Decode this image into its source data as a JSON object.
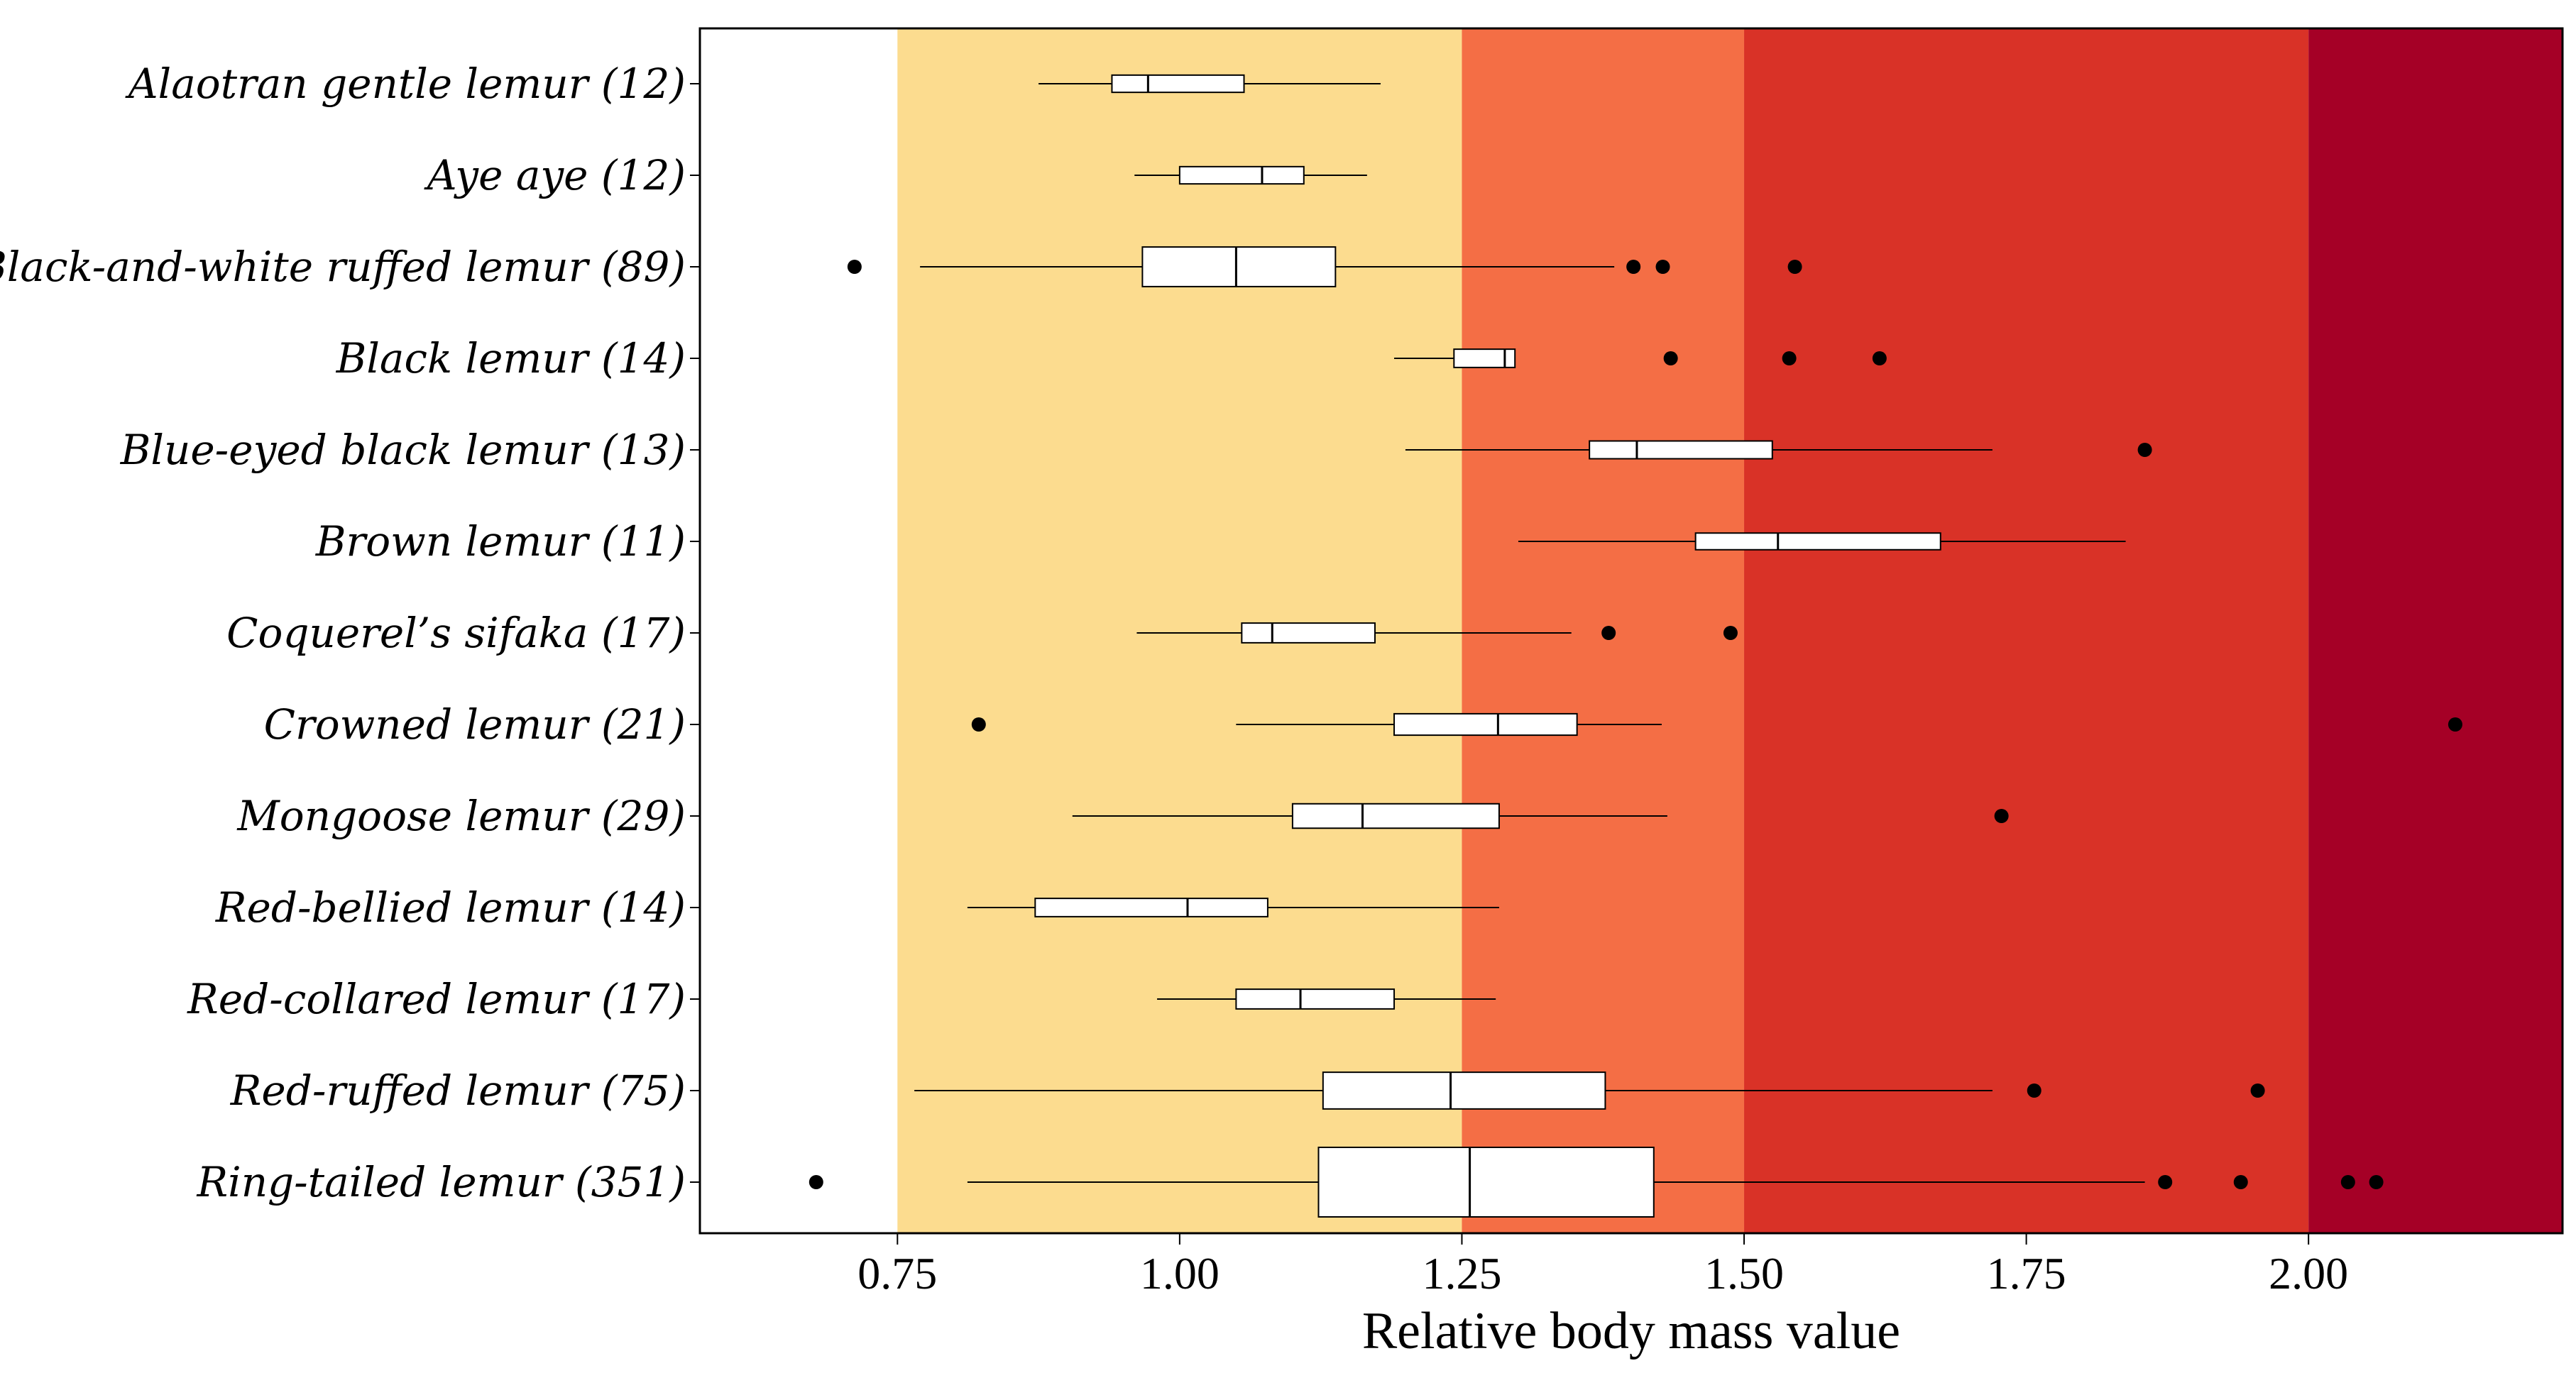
{
  "chart_data": {
    "type": "boxplot",
    "orientation": "horizontal",
    "xlabel": "Relative body mass value",
    "ylabel": "",
    "xlim": [
      0.575,
      2.225
    ],
    "xticks": [
      "0.75",
      "1.00",
      "1.25",
      "1.50",
      "1.75",
      "2.00"
    ],
    "bands": [
      {
        "from": 0.575,
        "to": 0.75,
        "color": "#ffffff"
      },
      {
        "from": 0.75,
        "to": 1.25,
        "color": "#fcdc8f"
      },
      {
        "from": 1.25,
        "to": 1.5,
        "color": "#f46e45"
      },
      {
        "from": 1.5,
        "to": 2.0,
        "color": "#d93227"
      },
      {
        "from": 2.0,
        "to": 2.225,
        "color": "#a50026"
      }
    ],
    "categories": [
      {
        "label": "Alaotran gentle lemur (12)",
        "n": 12,
        "whisker_low": 0.875,
        "q1": 0.94,
        "median": 0.972,
        "q3": 1.057,
        "whisker_high": 1.178,
        "outliers": []
      },
      {
        "label": "Aye aye (12)",
        "n": 12,
        "whisker_low": 0.96,
        "q1": 1.0,
        "median": 1.073,
        "q3": 1.11,
        "whisker_high": 1.166,
        "outliers": []
      },
      {
        "label": "Black-and-white ruffed lemur (89)",
        "n": 89,
        "whisker_low": 0.77,
        "q1": 0.967,
        "median": 1.05,
        "q3": 1.138,
        "whisker_high": 1.385,
        "outliers": [
          0.712,
          1.402,
          1.428,
          1.545
        ]
      },
      {
        "label": "Black lemur (14)",
        "n": 14,
        "whisker_low": 1.19,
        "q1": 1.243,
        "median": 1.288,
        "q3": 1.297,
        "whisker_high": 1.297,
        "outliers": [
          1.435,
          1.54,
          1.62
        ]
      },
      {
        "label": "Blue-eyed black lemur (13)",
        "n": 13,
        "whisker_low": 1.2,
        "q1": 1.363,
        "median": 1.405,
        "q3": 1.525,
        "whisker_high": 1.72,
        "outliers": [
          1.855
        ]
      },
      {
        "label": "Brown lemur (11)",
        "n": 11,
        "whisker_low": 1.3,
        "q1": 1.457,
        "median": 1.53,
        "q3": 1.674,
        "whisker_high": 1.838,
        "outliers": []
      },
      {
        "label": "Coquerel’s sifaka (17)",
        "n": 17,
        "whisker_low": 0.962,
        "q1": 1.055,
        "median": 1.082,
        "q3": 1.173,
        "whisker_high": 1.347,
        "outliers": [
          1.38,
          1.488
        ]
      },
      {
        "label": "Crowned lemur (21)",
        "n": 21,
        "whisker_low": 1.05,
        "q1": 1.19,
        "median": 1.282,
        "q3": 1.352,
        "whisker_high": 1.427,
        "outliers": [
          0.822,
          2.13
        ]
      },
      {
        "label": "Mongoose lemur (29)",
        "n": 29,
        "whisker_low": 0.905,
        "q1": 1.1,
        "median": 1.162,
        "q3": 1.283,
        "whisker_high": 1.432,
        "outliers": [
          1.728
        ]
      },
      {
        "label": "Red-bellied lemur (14)",
        "n": 14,
        "whisker_low": 0.812,
        "q1": 0.872,
        "median": 1.007,
        "q3": 1.078,
        "whisker_high": 1.283,
        "outliers": []
      },
      {
        "label": "Red-collared lemur (17)",
        "n": 17,
        "whisker_low": 0.98,
        "q1": 1.05,
        "median": 1.107,
        "q3": 1.19,
        "whisker_high": 1.28,
        "outliers": []
      },
      {
        "label": "Red-ruffed lemur (75)",
        "n": 75,
        "whisker_low": 0.765,
        "q1": 1.127,
        "median": 1.24,
        "q3": 1.377,
        "whisker_high": 1.72,
        "outliers": [
          1.757,
          1.955
        ]
      },
      {
        "label": "Ring-tailed lemur (351)",
        "n": 351,
        "whisker_low": 0.812,
        "q1": 1.123,
        "median": 1.257,
        "q3": 1.42,
        "whisker_high": 1.855,
        "outliers": [
          0.678,
          1.873,
          1.94,
          2.035,
          2.06
        ]
      }
    ],
    "grid": false,
    "legend": "none"
  },
  "colors": {
    "box_fill": "#ffffff",
    "box_stroke": "#000000",
    "outlier": "#000000",
    "frame": "#000000"
  }
}
